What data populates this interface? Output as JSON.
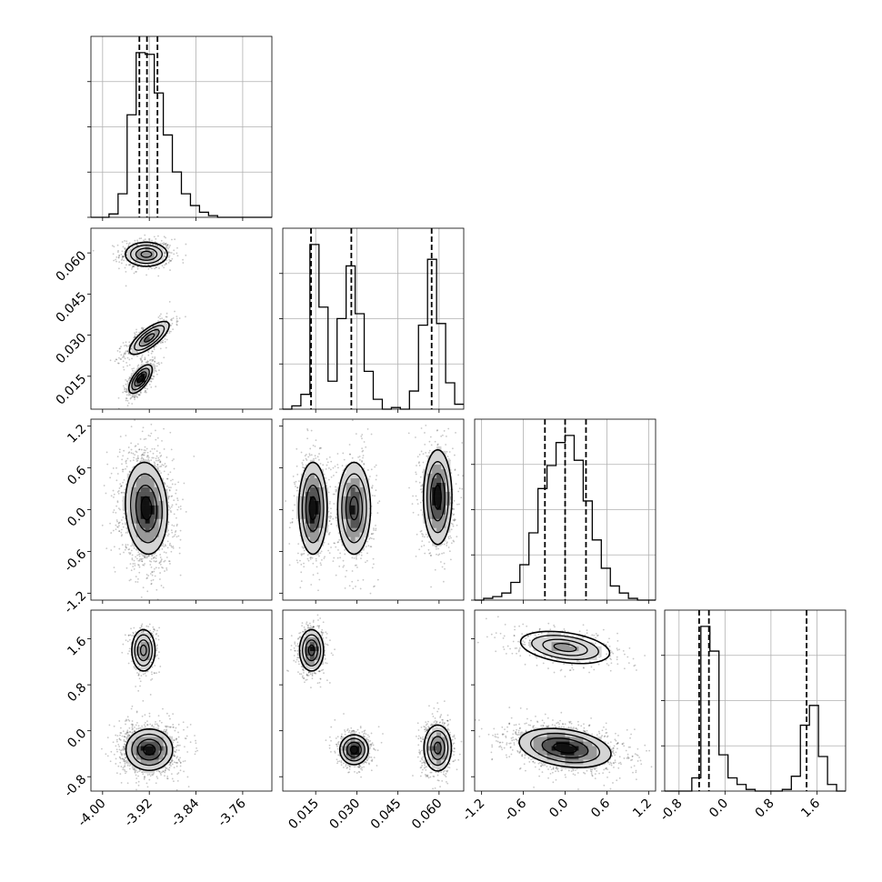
{
  "chart_data": {
    "type": "corner",
    "grid": true,
    "parameters": [
      {
        "range": [
          -4.02,
          -3.71
        ],
        "ticks": [
          "-4.00",
          "-3.92",
          "-3.84",
          "-3.76"
        ],
        "tick_values": [
          -4.0,
          -3.92,
          -3.84,
          -3.76
        ],
        "quantiles": [
          -3.937,
          -3.924,
          -3.906
        ],
        "hist_edges": [
          -4.02,
          -4.0045,
          -3.989,
          -3.9735,
          -3.958,
          -3.9425,
          -3.927,
          -3.9115,
          -3.896,
          -3.8805,
          -3.865,
          -3.8495,
          -3.834,
          -3.8185,
          -3.803,
          -3.7875,
          -3.772,
          -3.7565,
          -3.741,
          -3.7255,
          -3.71
        ],
        "hist_counts": [
          0,
          0,
          2,
          14,
          61,
          98,
          97,
          74,
          49,
          27,
          14,
          7,
          3,
          1,
          0,
          0,
          0,
          0,
          0,
          0
        ]
      },
      {
        "range": [
          0.003,
          0.069
        ],
        "ticks": [
          "0.015",
          "0.030",
          "0.045",
          "0.060"
        ],
        "tick_values": [
          0.015,
          0.03,
          0.045,
          0.06
        ],
        "quantiles": [
          0.0133,
          0.028,
          0.0573
        ],
        "hist_edges": [
          0.003,
          0.0063,
          0.0096,
          0.0129,
          0.0162,
          0.0195,
          0.0228,
          0.0261,
          0.0294,
          0.0327,
          0.036,
          0.0393,
          0.0426,
          0.0459,
          0.0492,
          0.0525,
          0.0558,
          0.0591,
          0.0624,
          0.0657,
          0.069
        ],
        "hist_counts": [
          0,
          2,
          9,
          100,
          62,
          17,
          55,
          87,
          58,
          23,
          6,
          0,
          1,
          0,
          11,
          51,
          91,
          52,
          16,
          3
        ]
      },
      {
        "range": [
          -1.3,
          1.3
        ],
        "ticks": [
          "-1.2",
          "-0.6",
          "0.0",
          "0.6",
          "1.2"
        ],
        "tick_values": [
          -1.2,
          -0.6,
          0.0,
          0.6,
          1.2
        ],
        "quantiles": [
          -0.29,
          0.0,
          0.3
        ],
        "hist_edges": [
          -1.3,
          -1.17,
          -1.04,
          -0.91,
          -0.78,
          -0.65,
          -0.52,
          -0.39,
          -0.26,
          -0.13,
          0.0,
          0.13,
          0.26,
          0.39,
          0.52,
          0.65,
          0.78,
          0.91,
          1.04,
          1.17,
          1.3
        ],
        "hist_counts": [
          0,
          1,
          2,
          4,
          10,
          20,
          38,
          63,
          76,
          89,
          93,
          79,
          56,
          34,
          18,
          8,
          4,
          1,
          0,
          0
        ]
      },
      {
        "range": [
          -1.05,
          2.1
        ],
        "ticks": [
          "-0.8",
          "0.0",
          "0.8",
          "1.6"
        ],
        "tick_values": [
          -0.8,
          0.0,
          0.8,
          1.6
        ],
        "quantiles": [
          -0.45,
          -0.28,
          1.42
        ],
        "hist_edges": [
          -1.05,
          -0.8925,
          -0.735,
          -0.5775,
          -0.42,
          -0.2625,
          -0.105,
          0.0525,
          0.21,
          0.3675,
          0.525,
          0.6825,
          0.84,
          0.9975,
          1.155,
          1.3125,
          1.47,
          1.6275,
          1.785,
          1.9425,
          2.1
        ],
        "hist_counts": [
          0,
          0,
          0,
          8,
          100,
          85,
          22,
          8,
          4,
          1,
          0,
          0,
          0,
          1,
          9,
          40,
          52,
          21,
          4,
          0
        ]
      }
    ],
    "pair_clusters": [
      {
        "x": 0,
        "y": 1,
        "clusters": [
          {
            "cx": -3.925,
            "cy": 0.0595,
            "sx": 0.018,
            "sy": 0.0022,
            "rho": 0.0,
            "w": 0.34
          },
          {
            "cx": -3.92,
            "cy": 0.029,
            "sx": 0.017,
            "sy": 0.003,
            "rho": 0.75,
            "w": 0.33
          },
          {
            "cx": -3.935,
            "cy": 0.014,
            "sx": 0.01,
            "sy": 0.0026,
            "rho": 0.65,
            "w": 0.33
          }
        ]
      },
      {
        "x": 0,
        "y": 2,
        "clusters": [
          {
            "cx": -3.925,
            "cy": 0.02,
            "sx": 0.018,
            "sy": 0.33,
            "rho": -0.1,
            "w": 1.0
          }
        ]
      },
      {
        "x": 1,
        "y": 2,
        "clusters": [
          {
            "cx": 0.014,
            "cy": 0.02,
            "sx": 0.0026,
            "sy": 0.33,
            "rho": 0.0,
            "w": 0.33
          },
          {
            "cx": 0.029,
            "cy": 0.02,
            "sx": 0.003,
            "sy": 0.33,
            "rho": 0.0,
            "w": 0.33
          },
          {
            "cx": 0.0595,
            "cy": 0.18,
            "sx": 0.0026,
            "sy": 0.34,
            "rho": 0.0,
            "w": 0.34
          }
        ]
      },
      {
        "x": 0,
        "y": 3,
        "clusters": [
          {
            "cx": -3.93,
            "cy": 1.4,
            "sx": 0.01,
            "sy": 0.18,
            "rho": 0.0,
            "w": 0.22
          },
          {
            "cx": -3.92,
            "cy": -0.33,
            "sx": 0.02,
            "sy": 0.18,
            "rho": 0.0,
            "w": 0.78
          }
        ]
      },
      {
        "x": 1,
        "y": 3,
        "clusters": [
          {
            "cx": 0.0135,
            "cy": 1.4,
            "sx": 0.0022,
            "sy": 0.18,
            "rho": 0.0,
            "w": 0.33
          },
          {
            "cx": 0.029,
            "cy": -0.33,
            "sx": 0.0026,
            "sy": 0.13,
            "rho": 0.0,
            "w": 0.33
          },
          {
            "cx": 0.0595,
            "cy": -0.3,
            "sx": 0.0025,
            "sy": 0.2,
            "rho": 0.0,
            "w": 0.34
          }
        ]
      },
      {
        "x": 2,
        "y": 3,
        "clusters": [
          {
            "cx": 0.0,
            "cy": 1.45,
            "sx": 0.32,
            "sy": 0.14,
            "rho": -0.35,
            "w": 0.25
          },
          {
            "cx": 0.0,
            "cy": -0.3,
            "sx": 0.33,
            "sy": 0.17,
            "rho": -0.3,
            "w": 0.75
          }
        ]
      }
    ]
  }
}
